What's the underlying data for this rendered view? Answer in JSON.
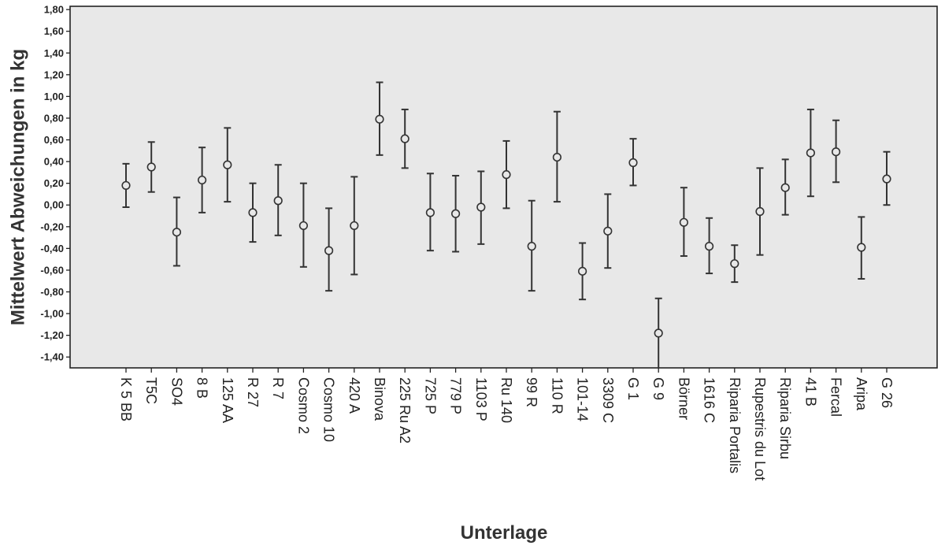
{
  "chart_data": {
    "type": "errorbar",
    "title": "",
    "xlabel": "Unterlage",
    "ylabel": "Mittelwert Abweichungen in kg",
    "ylim": [
      -1.5,
      1.83
    ],
    "yticks": [
      "1,80",
      "1,60",
      "1,40",
      "1,20",
      "1,00",
      "0,80",
      "0,60",
      "0,40",
      "0,20",
      "0,00",
      "-0,20",
      "-0,40",
      "-0,60",
      "-0,80",
      "-1,00",
      "-1,20",
      "-1,40"
    ],
    "ytick_values": [
      1.8,
      1.6,
      1.4,
      1.2,
      1.0,
      0.8,
      0.6,
      0.4,
      0.2,
      0.0,
      -0.2,
      -0.4,
      -0.6,
      -0.8,
      -1.0,
      -1.2,
      -1.4
    ],
    "grid": false,
    "colors": {
      "plot_background": "#e8e8e8",
      "marker": "#333333",
      "axis": "#222222"
    },
    "categories": [
      "K 5 BB",
      "T5C",
      "SO4",
      "8 B",
      "125 AA",
      "R 27",
      "R 7",
      "Cosmo 2",
      "Cosmo 10",
      "420 A",
      "Binova",
      "225 Ru A2",
      "725 P",
      "779 P",
      "1103 P",
      "Ru 140",
      "99 R",
      "110 R",
      "101-14",
      "3309 C",
      "G 1",
      "G 9",
      "Börner",
      "1616 C",
      "Riparia Portalis",
      "Rupestris du Lot",
      "Riparia Sirbu",
      "41 B",
      "Fercal",
      "Aripa",
      "G 26"
    ],
    "mean": [
      0.18,
      0.35,
      -0.25,
      0.23,
      0.37,
      -0.07,
      0.04,
      -0.19,
      -0.42,
      -0.19,
      0.79,
      0.61,
      -0.07,
      -0.08,
      -0.02,
      0.28,
      -0.38,
      0.44,
      -0.61,
      -0.24,
      0.39,
      -1.18,
      -0.16,
      -0.38,
      -0.54,
      -0.06,
      0.16,
      0.48,
      0.49,
      -0.39,
      0.24
    ],
    "lower": [
      -0.02,
      0.12,
      -0.56,
      -0.07,
      0.03,
      -0.34,
      -0.28,
      -0.57,
      -0.79,
      -0.64,
      0.46,
      0.34,
      -0.42,
      -0.43,
      -0.36,
      -0.03,
      -0.79,
      0.03,
      -0.87,
      -0.58,
      0.18,
      -1.5,
      -0.47,
      -0.63,
      -0.71,
      -0.46,
      -0.09,
      0.08,
      0.21,
      -0.68,
      0.0
    ],
    "upper": [
      0.38,
      0.58,
      0.07,
      0.53,
      0.71,
      0.2,
      0.37,
      0.2,
      -0.03,
      0.26,
      1.13,
      0.88,
      0.29,
      0.27,
      0.31,
      0.59,
      0.04,
      0.86,
      -0.35,
      0.1,
      0.61,
      -0.86,
      0.16,
      -0.12,
      -0.37,
      0.34,
      0.42,
      0.88,
      0.78,
      -0.11,
      0.49
    ]
  }
}
